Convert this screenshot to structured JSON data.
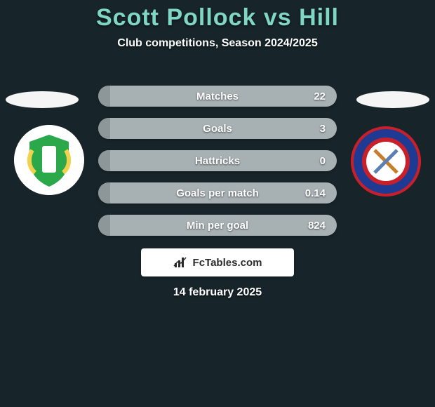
{
  "background_color": "#17252b",
  "title": {
    "text": "Scott Pollock vs Hill",
    "color": "#7fd6c4",
    "fontsize": 34
  },
  "subtitle": {
    "text": "Club competitions, Season 2024/2025",
    "color": "#ffffff",
    "fontsize": 16
  },
  "ellipse": {
    "left_color": "#f5f5f5",
    "right_color": "#f5f5f5",
    "width": 104,
    "height": 24
  },
  "badges": {
    "left": {
      "bg": "#ffffff",
      "size": 100,
      "inner_bg": "#2aa84a",
      "side_color": "#f2d24a",
      "alt": "yeovil-town-crest"
    },
    "right": {
      "bg": "#c8202a",
      "size": 100,
      "ring_color": "#1f3a93",
      "inner_bg": "#ffffff",
      "alt": "dagenham-redbridge-crest"
    }
  },
  "stats": {
    "bar_bg": "#a7b0b3",
    "fill_color": "#8d9699",
    "label_color": "#ffffff",
    "value_color": "#ffffff",
    "label_fontsize": 15,
    "value_fontsize": 15,
    "rows": [
      {
        "label": "Matches",
        "value": "22",
        "fill_pct": 5
      },
      {
        "label": "Goals",
        "value": "3",
        "fill_pct": 5
      },
      {
        "label": "Hattricks",
        "value": "0",
        "fill_pct": 5
      },
      {
        "label": "Goals per match",
        "value": "0.14",
        "fill_pct": 5
      },
      {
        "label": "Min per goal",
        "value": "824",
        "fill_pct": 5
      }
    ]
  },
  "footer": {
    "box_bg": "#ffffff",
    "text": "FcTables.com",
    "text_color": "#2b2b2b",
    "fontsize": 15,
    "icon_color": "#2b2b2b"
  },
  "date": {
    "text": "14 february 2025",
    "color": "#ffffff",
    "fontsize": 16
  }
}
